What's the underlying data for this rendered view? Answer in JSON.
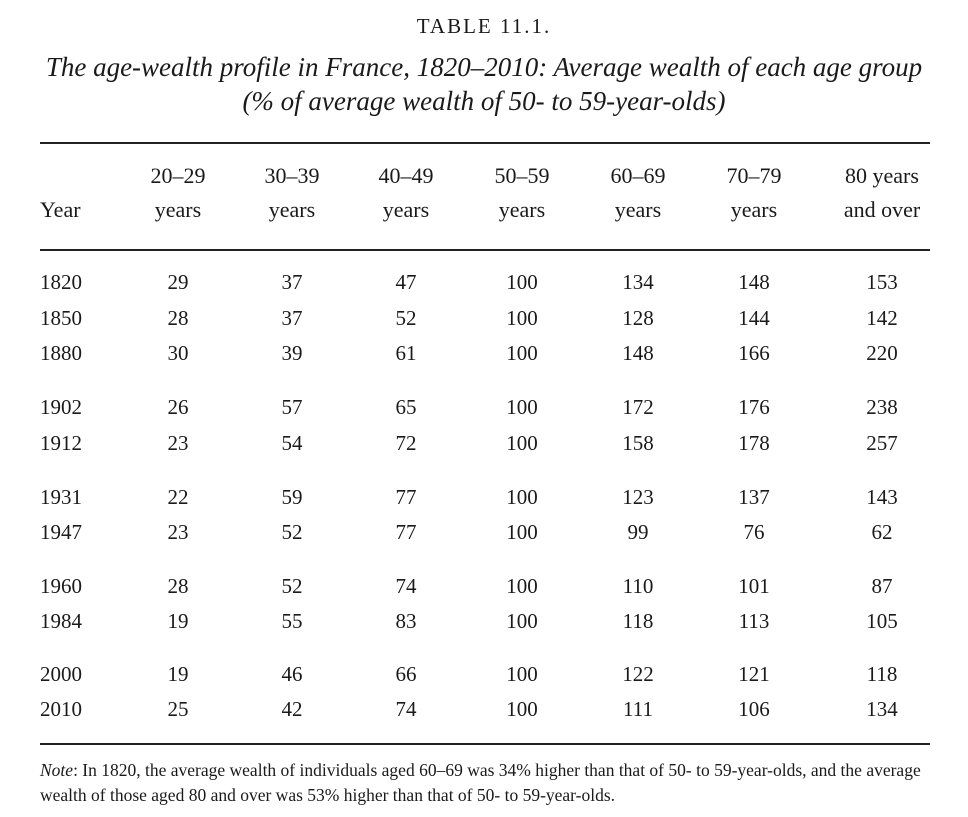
{
  "table_number": "TABLE 11.1.",
  "title_line1": "The age-wealth profile in France, 1820–2010: Average wealth of each age group",
  "title_line2": "(% of average wealth of 50- to 59-year-olds)",
  "headers": {
    "year": "Year",
    "cols": [
      {
        "line1": "20–29",
        "line2": "years"
      },
      {
        "line1": "30–39",
        "line2": "years"
      },
      {
        "line1": "40–49",
        "line2": "years"
      },
      {
        "line1": "50–59",
        "line2": "years"
      },
      {
        "line1": "60–69",
        "line2": "years"
      },
      {
        "line1": "70–79",
        "line2": "years"
      },
      {
        "line1": "80 years",
        "line2": "and over"
      }
    ]
  },
  "rows": [
    {
      "year": "1820",
      "values": [
        "29",
        "37",
        "47",
        "100",
        "134",
        "148",
        "153"
      ]
    },
    {
      "year": "1850",
      "values": [
        "28",
        "37",
        "52",
        "100",
        "128",
        "144",
        "142"
      ]
    },
    {
      "year": "1880",
      "values": [
        "30",
        "39",
        "61",
        "100",
        "148",
        "166",
        "220"
      ]
    },
    {
      "year": "1902",
      "values": [
        "26",
        "57",
        "65",
        "100",
        "172",
        "176",
        "238"
      ]
    },
    {
      "year": "1912",
      "values": [
        "23",
        "54",
        "72",
        "100",
        "158",
        "178",
        "257"
      ]
    },
    {
      "year": "1931",
      "values": [
        "22",
        "59",
        "77",
        "100",
        "123",
        "137",
        "143"
      ]
    },
    {
      "year": "1947",
      "values": [
        "23",
        "52",
        "77",
        "100",
        "99",
        "76",
        "62"
      ]
    },
    {
      "year": "1960",
      "values": [
        "28",
        "52",
        "74",
        "100",
        "110",
        "101",
        "87"
      ]
    },
    {
      "year": "1984",
      "values": [
        "19",
        "55",
        "83",
        "100",
        "118",
        "113",
        "105"
      ]
    },
    {
      "year": "2000",
      "values": [
        "19",
        "46",
        "66",
        "100",
        "122",
        "121",
        "118"
      ]
    },
    {
      "year": "2010",
      "values": [
        "25",
        "42",
        "74",
        "100",
        "111",
        "106",
        "134"
      ]
    }
  ],
  "note": {
    "label": "Note",
    "text": ": In 1820, the average wealth of individuals aged 60–69 was 34% higher than that of 50- to 59-year-olds, and the average wealth of those aged 80 and over was 53% higher than that of 50- to 59-year-olds."
  }
}
